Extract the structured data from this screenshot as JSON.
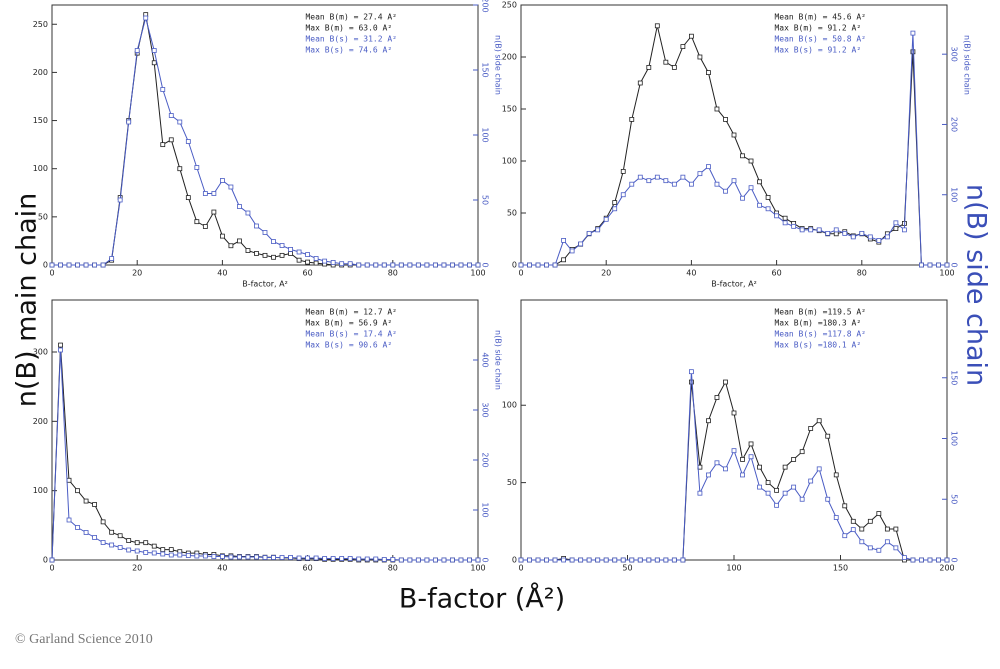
{
  "figure": {
    "y_label": "n(B) main chain",
    "y2_label": "n(B) side chain",
    "x_label": "B-factor (Å²)",
    "credit": "© Garland Science 2010"
  },
  "chart_data": [
    {
      "type": "line",
      "x_label": "B-factor, A²",
      "y2_label": "n(B) side chain",
      "annotations": [
        "Mean B(m) = 27.4 A²",
        "Max  B(m) = 63.0 A²",
        "Mean B(s)  = 31.2 A²",
        "Max  B(s)  = 74.6 A²"
      ],
      "x": [
        0,
        2,
        4,
        6,
        8,
        10,
        12,
        14,
        16,
        18,
        20,
        22,
        24,
        26,
        28,
        30,
        32,
        34,
        36,
        38,
        40,
        42,
        44,
        46,
        48,
        50,
        52,
        54,
        56,
        58,
        60,
        62,
        64,
        66,
        68,
        70,
        72,
        74,
        76,
        78,
        80,
        82,
        84,
        86,
        88,
        90,
        92,
        94,
        96,
        98,
        100
      ],
      "xlim": [
        0,
        100
      ],
      "xticks": [
        0,
        20,
        40,
        60,
        80,
        100
      ],
      "ylim": [
        0,
        270
      ],
      "yticks": [
        0,
        50,
        100,
        150,
        200,
        250
      ],
      "y2lim": [
        0,
        200
      ],
      "y2ticks": [
        0,
        50,
        100,
        150,
        200
      ],
      "series": [
        {
          "color": "#222222",
          "values": [
            0,
            0,
            0,
            0,
            0,
            0,
            0,
            5,
            70,
            150,
            220,
            260,
            210,
            125,
            130,
            100,
            70,
            45,
            40,
            55,
            30,
            20,
            25,
            15,
            12,
            10,
            8,
            10,
            12,
            5,
            3,
            2,
            1,
            0,
            0,
            0,
            0,
            0,
            0,
            0,
            0,
            0,
            0,
            0,
            0,
            0,
            0,
            0,
            0,
            0,
            0
          ]
        },
        {
          "color": "#4a5cc4",
          "axis": "y2",
          "values": [
            0,
            0,
            0,
            0,
            0,
            0,
            0,
            5,
            50,
            110,
            165,
            190,
            165,
            135,
            115,
            110,
            95,
            75,
            55,
            55,
            65,
            60,
            45,
            40,
            30,
            25,
            18,
            15,
            12,
            10,
            8,
            5,
            3,
            2,
            1,
            1,
            0,
            0,
            0,
            0,
            0,
            0,
            0,
            0,
            0,
            0,
            0,
            0,
            0,
            0,
            0
          ]
        }
      ]
    },
    {
      "type": "line",
      "x_label": "B-factor, A²",
      "y2_label": "n(B) side chain",
      "annotations": [
        "Mean B(m) = 45.6 A²",
        "Max  B(m) = 91.2 A²",
        "Mean B(s)  = 50.8 A²",
        "Max  B(s)  = 91.2 A²"
      ],
      "x": [
        0,
        2,
        4,
        6,
        8,
        10,
        12,
        14,
        16,
        18,
        20,
        22,
        24,
        26,
        28,
        30,
        32,
        34,
        36,
        38,
        40,
        42,
        44,
        46,
        48,
        50,
        52,
        54,
        56,
        58,
        60,
        62,
        64,
        66,
        68,
        70,
        72,
        74,
        76,
        78,
        80,
        82,
        84,
        86,
        88,
        90,
        92,
        94,
        96,
        98,
        100
      ],
      "xlim": [
        0,
        100
      ],
      "xticks": [
        0,
        20,
        40,
        60,
        80,
        100
      ],
      "ylim": [
        0,
        250
      ],
      "yticks": [
        0,
        50,
        100,
        150,
        200,
        250
      ],
      "y2lim": [
        0,
        370
      ],
      "y2ticks": [
        0,
        100,
        200,
        300
      ],
      "series": [
        {
          "color": "#222222",
          "values": [
            0,
            0,
            0,
            0,
            0,
            5,
            15,
            20,
            30,
            35,
            45,
            60,
            90,
            140,
            175,
            190,
            230,
            195,
            190,
            210,
            220,
            200,
            185,
            150,
            140,
            125,
            105,
            100,
            80,
            65,
            50,
            45,
            40,
            35,
            35,
            33,
            30,
            30,
            32,
            28,
            30,
            25,
            22,
            30,
            35,
            40,
            205,
            0,
            0,
            0,
            0
          ]
        },
        {
          "color": "#4a5cc4",
          "axis": "y2",
          "values": [
            0,
            0,
            0,
            0,
            0,
            35,
            20,
            30,
            45,
            50,
            65,
            80,
            100,
            115,
            125,
            120,
            125,
            120,
            115,
            125,
            115,
            130,
            140,
            115,
            105,
            120,
            95,
            110,
            85,
            80,
            70,
            60,
            55,
            50,
            50,
            50,
            45,
            50,
            45,
            40,
            45,
            40,
            35,
            40,
            60,
            50,
            330,
            0,
            0,
            0,
            0
          ]
        }
      ]
    },
    {
      "type": "line",
      "y2_label": "n(B) side chain",
      "annotations": [
        "Mean B(m) = 12.7 A²",
        "Max  B(m) = 56.9 A²",
        "Mean B(s)  = 17.4 A²",
        "Max  B(s)  = 90.6 A²"
      ],
      "x": [
        0,
        2,
        4,
        6,
        8,
        10,
        12,
        14,
        16,
        18,
        20,
        22,
        24,
        26,
        28,
        30,
        32,
        34,
        36,
        38,
        40,
        42,
        44,
        46,
        48,
        50,
        52,
        54,
        56,
        58,
        60,
        62,
        64,
        66,
        68,
        70,
        72,
        74,
        76,
        78,
        80,
        82,
        84,
        86,
        88,
        90,
        92,
        94,
        96,
        98,
        100
      ],
      "xlim": [
        0,
        100
      ],
      "xticks": [
        0,
        20,
        40,
        60,
        80,
        100
      ],
      "ylim": [
        0,
        375
      ],
      "yticks": [
        0,
        100,
        200,
        300
      ],
      "y2lim": [
        0,
        520
      ],
      "y2ticks": [
        0,
        100,
        200,
        300,
        400
      ],
      "series": [
        {
          "color": "#222222",
          "values": [
            0,
            310,
            115,
            100,
            85,
            80,
            55,
            40,
            35,
            28,
            25,
            25,
            20,
            15,
            15,
            12,
            10,
            10,
            8,
            8,
            6,
            6,
            5,
            5,
            5,
            4,
            4,
            3,
            3,
            2,
            2,
            2,
            1,
            1,
            1,
            1,
            0,
            0,
            0,
            0,
            0,
            0,
            0,
            0,
            0,
            0,
            0,
            0,
            0,
            0,
            0
          ]
        },
        {
          "color": "#4a5cc4",
          "axis": "y2",
          "values": [
            0,
            420,
            80,
            65,
            55,
            45,
            35,
            30,
            25,
            20,
            18,
            15,
            14,
            12,
            10,
            10,
            9,
            8,
            8,
            7,
            7,
            6,
            6,
            6,
            6,
            5,
            5,
            5,
            5,
            4,
            4,
            4,
            3,
            3,
            3,
            3,
            2,
            2,
            2,
            1,
            1,
            0,
            0,
            0,
            0,
            0,
            0,
            0,
            0,
            0,
            0
          ]
        }
      ]
    },
    {
      "type": "line",
      "annotations": [
        "Mean B(m) =119.5 A²",
        "Max  B(m) =180.3 A²",
        "Mean B(s)  =117.8 A²",
        "Max  B(s)  =180.1 A²"
      ],
      "x": [
        0,
        4,
        8,
        12,
        16,
        20,
        24,
        28,
        32,
        36,
        40,
        44,
        48,
        52,
        56,
        60,
        64,
        68,
        72,
        76,
        80,
        84,
        88,
        92,
        96,
        100,
        104,
        108,
        112,
        116,
        120,
        124,
        128,
        132,
        136,
        140,
        144,
        148,
        152,
        156,
        160,
        164,
        168,
        172,
        176,
        180,
        184,
        188,
        192,
        196,
        200
      ],
      "xlim": [
        0,
        200
      ],
      "xticks": [
        0,
        50,
        100,
        150,
        200
      ],
      "ylim": [
        0,
        168
      ],
      "yticks": [
        0,
        50,
        100
      ],
      "y2lim": [
        0,
        214
      ],
      "y2ticks": [
        0,
        50,
        100,
        150
      ],
      "series": [
        {
          "color": "#222222",
          "values": [
            0,
            0,
            0,
            0,
            0,
            1,
            0,
            0,
            0,
            0,
            0,
            0,
            0,
            0,
            0,
            0,
            0,
            0,
            0,
            0,
            115,
            60,
            90,
            105,
            115,
            95,
            65,
            75,
            60,
            50,
            45,
            60,
            65,
            70,
            85,
            90,
            80,
            55,
            35,
            25,
            20,
            25,
            30,
            20,
            20,
            0,
            0,
            0,
            0,
            0,
            0
          ]
        },
        {
          "color": "#4a5cc4",
          "axis": "y2",
          "values": [
            0,
            0,
            0,
            0,
            0,
            0,
            0,
            0,
            0,
            0,
            0,
            0,
            0,
            0,
            0,
            0,
            0,
            0,
            0,
            0,
            155,
            55,
            70,
            80,
            75,
            90,
            70,
            85,
            60,
            55,
            45,
            55,
            60,
            50,
            65,
            75,
            50,
            35,
            20,
            25,
            15,
            10,
            8,
            15,
            10,
            2,
            0,
            0,
            0,
            0,
            0
          ]
        }
      ]
    }
  ]
}
